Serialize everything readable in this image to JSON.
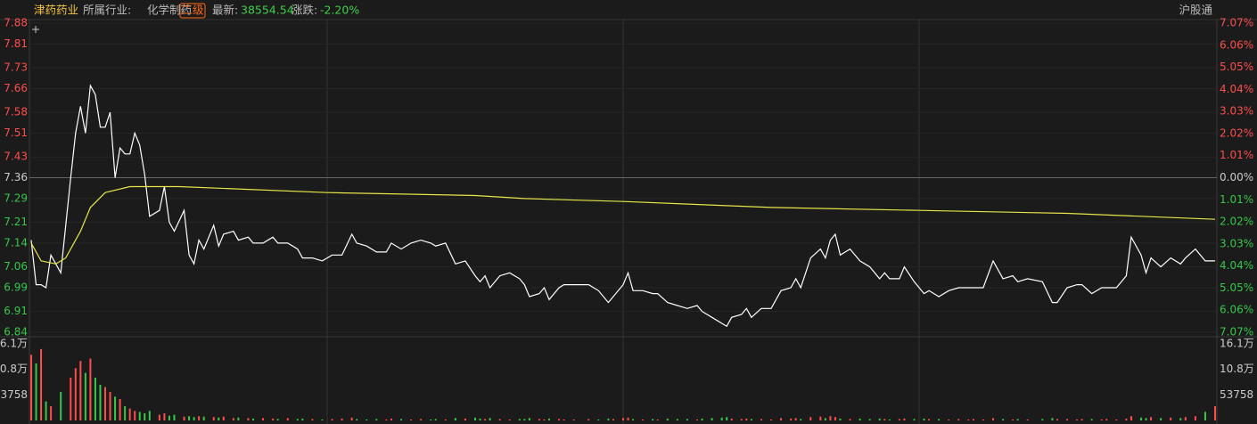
{
  "header": {
    "name": "津药药业",
    "industry_label": "所属行业:",
    "industry": "化学制药",
    "level": "二级",
    "latest_label": "最新:",
    "latest_value": "38554.54",
    "change_label": "涨跌:",
    "change_value": "-2.20%",
    "connect": "沪股通"
  },
  "chart_data": [
    {
      "type": "line",
      "ylim": [
        6.84,
        7.88
      ],
      "yticks": [
        7.88,
        7.81,
        7.73,
        7.66,
        7.58,
        7.51,
        7.43,
        7.36,
        7.29,
        7.21,
        7.14,
        7.06,
        6.99,
        6.91,
        6.84
      ],
      "y2lim": [
        -7.07,
        7.07
      ],
      "y2ticks": [
        {
          "value": 7.07,
          "label": "7.07%"
        },
        {
          "value": 6.06,
          "label": "6.06%"
        },
        {
          "value": 5.05,
          "label": "5.05%"
        },
        {
          "value": 4.04,
          "label": "4.04%"
        },
        {
          "value": 3.03,
          "label": "3.03%"
        },
        {
          "value": 2.02,
          "label": "2.02%"
        },
        {
          "value": 1.01,
          "label": "1.01%"
        },
        {
          "value": 0,
          "label": "0.00%"
        },
        {
          "value": -1.01,
          "label": "1.01%"
        },
        {
          "value": -2.02,
          "label": "2.02%"
        },
        {
          "value": -3.03,
          "label": "3.03%"
        },
        {
          "value": -4.04,
          "label": "4.04%"
        },
        {
          "value": -5.05,
          "label": "5.05%"
        },
        {
          "value": -6.06,
          "label": "6.06%"
        },
        {
          "value": -7.07,
          "label": "7.07%"
        }
      ],
      "grid": true,
      "series": [
        {
          "color": "#ffffff",
          "x": [
            0,
            1,
            2,
            3,
            4,
            6,
            8,
            9,
            10,
            11,
            12,
            13,
            14,
            15,
            16,
            17,
            18,
            19,
            20,
            21,
            22,
            23,
            24,
            26,
            27,
            28,
            29,
            31,
            32,
            33,
            34,
            35,
            37,
            38,
            39,
            41,
            42,
            44,
            45,
            47,
            49,
            50,
            52,
            54,
            55,
            57,
            59,
            61,
            63,
            65,
            66,
            68,
            70,
            72,
            73,
            75,
            77,
            79,
            81,
            82,
            84,
            86,
            88,
            90,
            91,
            92,
            93,
            95,
            97,
            99,
            100,
            101,
            103,
            104,
            105,
            107,
            108,
            110,
            113,
            115,
            117,
            118,
            120,
            121,
            122,
            124,
            126,
            127,
            129,
            131,
            133,
            135,
            136,
            138,
            140,
            141,
            142,
            144,
            145,
            146,
            148,
            150,
            152,
            154,
            155,
            156,
            158,
            160,
            161,
            162,
            163,
            164,
            166,
            168,
            170,
            172,
            173,
            174,
            176,
            177,
            179,
            181,
            182,
            184,
            186,
            188,
            190,
            191,
            193,
            195,
            197,
            199,
            200,
            202,
            205,
            207,
            208,
            210,
            212,
            213,
            215,
            217,
            218,
            220,
            222,
            223,
            225,
            226,
            227,
            229,
            231,
            233,
            234,
            236,
            238,
            240
          ],
          "values": [
            7.15,
            7.0,
            7.0,
            6.99,
            7.1,
            7.04,
            7.36,
            7.51,
            7.6,
            7.51,
            7.67,
            7.64,
            7.53,
            7.53,
            7.58,
            7.36,
            7.46,
            7.44,
            7.44,
            7.51,
            7.47,
            7.37,
            7.23,
            7.25,
            7.33,
            7.21,
            7.18,
            7.25,
            7.1,
            7.07,
            7.15,
            7.12,
            7.2,
            7.13,
            7.17,
            7.18,
            7.15,
            7.16,
            7.14,
            7.14,
            7.16,
            7.14,
            7.14,
            7.12,
            7.09,
            7.09,
            7.08,
            7.1,
            7.1,
            7.17,
            7.14,
            7.13,
            7.11,
            7.11,
            7.14,
            7.12,
            7.14,
            7.15,
            7.14,
            7.13,
            7.14,
            7.07,
            7.08,
            7.03,
            7.01,
            7.03,
            6.99,
            7.03,
            7.04,
            7.02,
            7.0,
            6.96,
            6.97,
            6.99,
            6.95,
            6.99,
            7.0,
            7.0,
            7.0,
            6.98,
            6.94,
            6.96,
            7.0,
            7.04,
            6.98,
            6.98,
            6.97,
            6.97,
            6.94,
            6.93,
            6.92,
            6.93,
            6.91,
            6.89,
            6.87,
            6.86,
            6.89,
            6.9,
            6.92,
            6.89,
            6.92,
            6.92,
            6.98,
            6.99,
            7.02,
            6.99,
            7.09,
            7.12,
            7.09,
            7.15,
            7.17,
            7.1,
            7.12,
            7.08,
            7.06,
            7.02,
            7.04,
            7.02,
            7.02,
            7.06,
            7.01,
            6.97,
            6.98,
            6.96,
            6.98,
            6.99,
            6.99,
            6.99,
            6.99,
            7.08,
            7.02,
            7.03,
            7.01,
            7.02,
            7.01,
            6.94,
            6.94,
            6.99,
            7.0,
            7.0,
            6.97,
            6.99,
            6.99,
            6.99,
            7.03,
            7.16,
            7.1,
            7.04,
            7.09,
            7.06,
            7.09,
            7.07,
            7.09,
            7.12,
            7.08,
            7.08
          ]
        },
        {
          "color": "#e6e64a",
          "x": [
            0,
            2,
            5,
            7,
            10,
            12,
            15,
            20,
            30,
            60,
            90,
            100,
            120,
            150,
            180,
            210,
            240
          ],
          "values": [
            7.14,
            7.08,
            7.07,
            7.09,
            7.18,
            7.26,
            7.31,
            7.33,
            7.33,
            7.31,
            7.3,
            7.29,
            7.28,
            7.26,
            7.25,
            7.24,
            7.22
          ]
        }
      ]
    },
    {
      "type": "bar",
      "ylim": [
        0,
        161000
      ],
      "yticks": [
        {
          "value": 161000,
          "label": "16.1万"
        },
        {
          "value": 108000,
          "label": "10.8万"
        },
        53758
      ],
      "x": [
        0,
        1,
        2,
        3,
        4,
        6,
        8,
        9,
        10,
        11,
        12,
        13,
        14,
        15,
        16,
        17,
        18,
        19,
        20,
        21,
        22,
        23,
        24,
        26,
        27,
        28,
        29,
        31,
        32,
        33,
        34,
        35,
        37,
        38,
        39,
        41,
        42,
        44,
        45,
        47,
        49,
        50,
        52,
        54,
        55,
        57,
        59,
        61,
        63,
        65,
        66,
        68,
        70,
        72,
        73,
        75,
        77,
        79,
        81,
        82,
        84,
        86,
        88,
        90,
        91,
        92,
        93,
        95,
        97,
        99,
        100,
        101,
        103,
        104,
        105,
        107,
        108,
        110,
        113,
        115,
        117,
        118,
        120,
        121,
        122,
        124,
        126,
        127,
        129,
        131,
        133,
        135,
        136,
        138,
        140,
        141,
        142,
        144,
        145,
        146,
        148,
        150,
        152,
        154,
        155,
        156,
        158,
        160,
        161,
        162,
        163,
        164,
        166,
        168,
        170,
        172,
        173,
        174,
        176,
        177,
        179,
        181,
        182,
        184,
        186,
        188,
        190,
        191,
        193,
        195,
        197,
        199,
        200,
        202,
        205,
        207,
        208,
        210,
        212,
        213,
        215,
        217,
        218,
        220,
        222,
        223,
        225,
        226,
        227,
        229,
        231,
        233,
        234,
        236,
        238,
        240
      ],
      "values": [
        138000,
        120000,
        150000,
        40000,
        30000,
        60000,
        90000,
        110000,
        125000,
        100000,
        130000,
        90000,
        75000,
        70000,
        60000,
        50000,
        45000,
        30000,
        25000,
        20000,
        18000,
        15000,
        20000,
        12000,
        15000,
        10000,
        12000,
        8000,
        9000,
        7000,
        9000,
        8000,
        7000,
        6000,
        8000,
        5000,
        6000,
        5000,
        4000,
        5000,
        4000,
        3000,
        5000,
        3000,
        4000,
        3000,
        2000,
        3000,
        4000,
        6000,
        3000,
        2000,
        3000,
        2000,
        4000,
        3000,
        2000,
        3000,
        2000,
        3000,
        2000,
        5000,
        4000,
        6000,
        4000,
        3000,
        5000,
        3000,
        2000,
        3000,
        3000,
        5000,
        3000,
        2000,
        4000,
        3000,
        2000,
        2000,
        3000,
        2000,
        4000,
        3000,
        5000,
        6000,
        3000,
        2000,
        3000,
        2000,
        4000,
        3000,
        3000,
        2000,
        4000,
        5000,
        6000,
        7000,
        4000,
        3000,
        4000,
        3000,
        3000,
        2000,
        5000,
        4000,
        5000,
        3000,
        7000,
        8000,
        5000,
        9000,
        7000,
        4000,
        3000,
        4000,
        3000,
        4000,
        3000,
        2000,
        3000,
        4000,
        3000,
        4000,
        3000,
        3000,
        2000,
        3000,
        2000,
        3000,
        2000,
        5000,
        3000,
        2000,
        3000,
        2000,
        3000,
        5000,
        3000,
        3000,
        2000,
        3000,
        3000,
        2000,
        3000,
        2000,
        4000,
        9000,
        6000,
        5000,
        7000,
        5000,
        6000,
        5000,
        7000,
        9000,
        18000,
        30000
      ]
    }
  ]
}
